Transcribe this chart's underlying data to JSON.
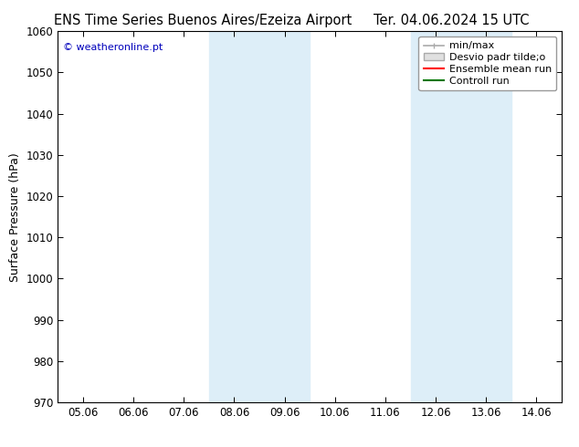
{
  "title_left": "ENS Time Series Buenos Aires/Ezeiza Airport",
  "title_right": "Ter. 04.06.2024 15 UTC",
  "ylabel": "Surface Pressure (hPa)",
  "ylim": [
    970,
    1060
  ],
  "yticks": [
    970,
    980,
    990,
    1000,
    1010,
    1020,
    1030,
    1040,
    1050,
    1060
  ],
  "xtick_labels": [
    "05.06",
    "06.06",
    "07.06",
    "08.06",
    "09.06",
    "10.06",
    "11.06",
    "12.06",
    "13.06",
    "14.06"
  ],
  "watermark": "© weatheronline.pt",
  "watermark_color": "#0000bb",
  "background_color": "#ffffff",
  "shaded_regions": [
    {
      "xstart": 3,
      "xend": 4,
      "color": "#ddeef8"
    },
    {
      "xstart": 7,
      "xend": 8,
      "color": "#ddeef8"
    }
  ],
  "legend_entries": [
    {
      "label": "min/max",
      "color": "#aaaaaa"
    },
    {
      "label": "Desvio padr tilde;o",
      "color": "#cccccc"
    },
    {
      "label": "Ensemble mean run",
      "color": "#ff0000"
    },
    {
      "label": "Controll run",
      "color": "#007700"
    }
  ],
  "title_fontsize": 10.5,
  "ylabel_fontsize": 9,
  "tick_fontsize": 8.5,
  "legend_fontsize": 8,
  "watermark_fontsize": 8
}
